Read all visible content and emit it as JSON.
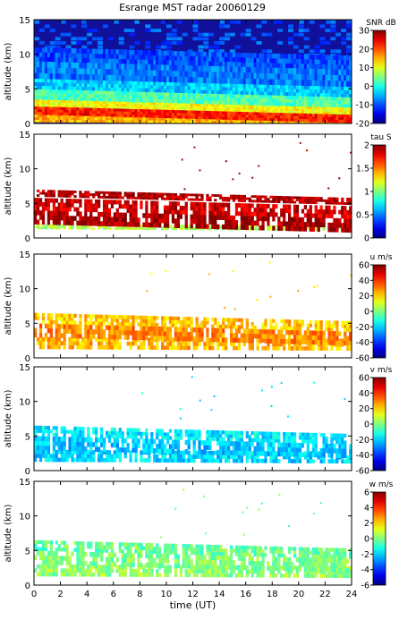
{
  "title": "Esrange MST radar 20060129",
  "chart_data": [
    {
      "type": "heatmap",
      "variable": "SNR",
      "xlabel": "",
      "ylabel": "altitude (km)",
      "xlim": [
        0,
        24
      ],
      "ylim": [
        0,
        15
      ],
      "colorbar": {
        "label": "SNR dB",
        "range": [
          -20,
          30
        ],
        "ticks": [
          -20,
          -10,
          0,
          10,
          20,
          30
        ]
      },
      "background": "#10109a",
      "layers": [
        {
          "y": [
            0.2,
            1.3
          ],
          "v": 0.7
        },
        {
          "y": [
            1.3,
            2.5
          ],
          "v": 0.85
        },
        {
          "y": [
            2.5,
            3.5
          ],
          "v": 0.62
        },
        {
          "y": [
            3.5,
            5.0
          ],
          "v": 0.45
        },
        {
          "y": [
            5.0,
            6.5
          ],
          "v": 0.32
        },
        {
          "y": [
            6.5,
            9.0
          ],
          "v": 0.24
        },
        {
          "y": [
            9.0,
            11.0
          ],
          "v": 0.2
        }
      ]
    },
    {
      "type": "heatmap",
      "variable": "tau",
      "xlabel": "",
      "ylabel": "altitude (km)",
      "xlim": [
        0,
        24
      ],
      "ylim": [
        0,
        15
      ],
      "colorbar": {
        "label": "tau S",
        "range": [
          0,
          2
        ],
        "ticks": [
          0,
          0.5,
          1,
          1.5,
          2
        ]
      },
      "background": "#ffffff",
      "layers": [
        {
          "y": [
            1.3,
            2.0
          ],
          "v": 0.55
        },
        {
          "y": [
            2.0,
            4.0
          ],
          "v": 0.97
        },
        {
          "y": [
            4.0,
            5.8
          ],
          "v": 0.92
        },
        {
          "y": [
            6.0,
            7.0
          ],
          "v": 0.95
        }
      ]
    },
    {
      "type": "heatmap",
      "variable": "u",
      "xlabel": "",
      "ylabel": "altitude (km)",
      "xlim": [
        0,
        24
      ],
      "ylim": [
        0,
        15
      ],
      "colorbar": {
        "label": "u m/s",
        "range": [
          -60,
          60
        ],
        "ticks": [
          -60,
          -40,
          -20,
          0,
          20,
          40,
          60
        ]
      },
      "background": "#ffffff",
      "layers": [
        {
          "y": [
            1.3,
            3.0
          ],
          "v": 0.7
        },
        {
          "y": [
            3.0,
            5.0
          ],
          "v": 0.74
        },
        {
          "y": [
            5.0,
            6.5
          ],
          "v": 0.68
        }
      ]
    },
    {
      "type": "heatmap",
      "variable": "v",
      "xlabel": "",
      "ylabel": "altitude (km)",
      "xlim": [
        0,
        24
      ],
      "ylim": [
        0,
        15
      ],
      "colorbar": {
        "label": "v m/s",
        "range": [
          -60,
          60
        ],
        "ticks": [
          -60,
          -40,
          -20,
          0,
          20,
          40,
          60
        ]
      },
      "background": "#ffffff",
      "layers": [
        {
          "y": [
            1.3,
            3.0
          ],
          "v": 0.34
        },
        {
          "y": [
            3.0,
            5.0
          ],
          "v": 0.32
        },
        {
          "y": [
            5.0,
            6.5
          ],
          "v": 0.36
        }
      ]
    },
    {
      "type": "heatmap",
      "variable": "w",
      "xlabel": "time (UT)",
      "ylabel": "altitude (km)",
      "xlim": [
        0,
        24
      ],
      "ylim": [
        0,
        15
      ],
      "colorbar": {
        "label": "w m/s",
        "range": [
          -6,
          6
        ],
        "ticks": [
          -6,
          -4,
          -2,
          0,
          2,
          4,
          6
        ]
      },
      "background": "#ffffff",
      "layers": [
        {
          "y": [
            1.3,
            3.0
          ],
          "v": 0.52
        },
        {
          "y": [
            3.0,
            5.0
          ],
          "v": 0.5
        },
        {
          "y": [
            5.0,
            6.5
          ],
          "v": 0.48
        }
      ]
    }
  ],
  "y_ticks": [
    0,
    5,
    10,
    15
  ],
  "x_ticks": [
    0,
    2,
    4,
    6,
    8,
    10,
    12,
    14,
    16,
    18,
    20,
    22,
    24
  ]
}
